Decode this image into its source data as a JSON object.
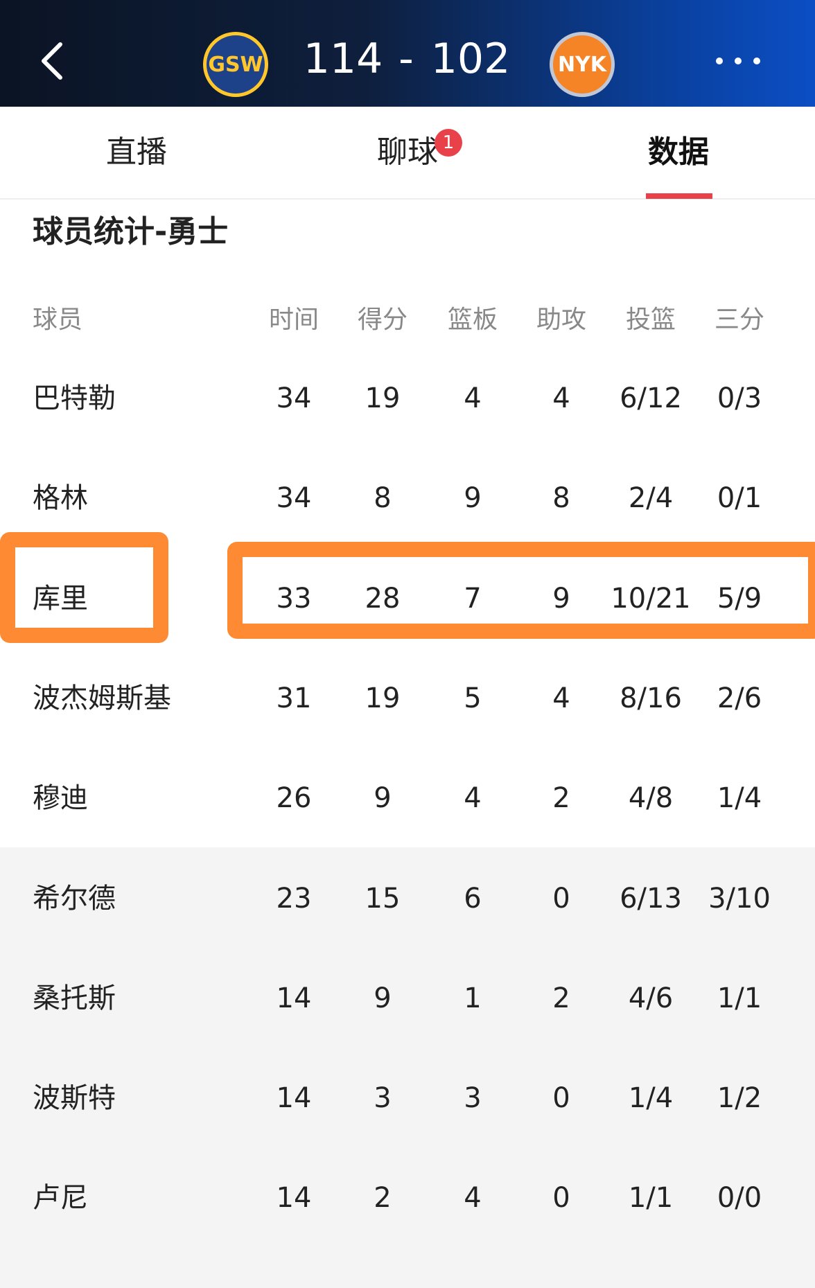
{
  "header": {
    "home_logo": "GSW",
    "score_home": "114",
    "separator": "-",
    "score_away": "102",
    "away_logo": "NYK"
  },
  "tabs": [
    {
      "label": "直播"
    },
    {
      "label": "聊球",
      "badge": "1"
    },
    {
      "label": "数据"
    }
  ],
  "section_title": "球员统计-勇士",
  "table": {
    "columns": [
      "球员",
      "时间",
      "得分",
      "篮板",
      "助攻",
      "投篮",
      "三分"
    ],
    "rows": [
      [
        "巴特勒",
        "34",
        "19",
        "4",
        "4",
        "6/12",
        "0/3"
      ],
      [
        "格林",
        "34",
        "8",
        "9",
        "8",
        "2/4",
        "0/1"
      ],
      [
        "库里",
        "33",
        "28",
        "7",
        "9",
        "10/21",
        "5/9"
      ],
      [
        "波杰姆斯基",
        "31",
        "19",
        "5",
        "4",
        "8/16",
        "2/6"
      ],
      [
        "穆迪",
        "26",
        "9",
        "4",
        "2",
        "4/8",
        "1/4"
      ],
      [
        "希尔德",
        "23",
        "15",
        "6",
        "0",
        "6/13",
        "3/10"
      ],
      [
        "桑托斯",
        "14",
        "9",
        "1",
        "2",
        "4/6",
        "1/1"
      ],
      [
        "波斯特",
        "14",
        "3",
        "3",
        "0",
        "1/4",
        "1/2"
      ],
      [
        "卢尼",
        "14",
        "2",
        "4",
        "0",
        "1/1",
        "0/0"
      ]
    ]
  }
}
